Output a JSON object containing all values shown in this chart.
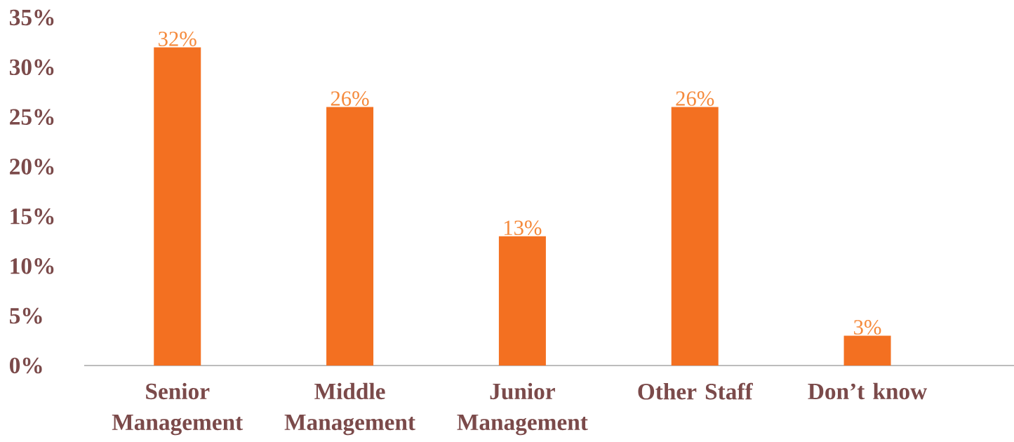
{
  "chart_data": {
    "type": "bar",
    "categories": [
      "Senior Management",
      "Middle Management",
      "Junior Management",
      "Other Staff",
      "Don’t know"
    ],
    "values": [
      32,
      26,
      13,
      26,
      3
    ],
    "value_labels": [
      "32%",
      "26%",
      "13%",
      "26%",
      "3%"
    ],
    "color": "#f37021",
    "ylim": [
      0,
      35
    ],
    "yticks": [
      {
        "value": 0,
        "label": "0%"
      },
      {
        "value": 5,
        "label": "5%"
      },
      {
        "value": 10,
        "label": "10%"
      },
      {
        "value": 15,
        "label": "15%"
      },
      {
        "value": 20,
        "label": "20%"
      },
      {
        "value": 25,
        "label": "25%"
      },
      {
        "value": 30,
        "label": "30%"
      },
      {
        "value": 35,
        "label": "35%"
      }
    ]
  }
}
